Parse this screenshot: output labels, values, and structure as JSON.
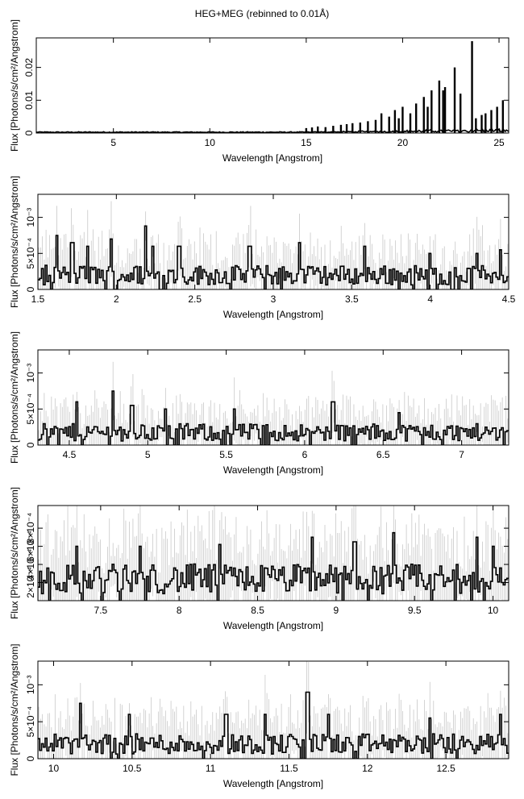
{
  "title": "HEG+MEG (rebinned to 0.01Å)",
  "chart_data": [
    {
      "type": "line",
      "xlabel": "Wavelength [Angstrom]",
      "ylabel": "Flux [Photons/s/cm²/Angstrom]",
      "xlim": [
        1.0,
        25.5
      ],
      "ylim": [
        0,
        0.029
      ],
      "xticks": [
        5,
        10,
        15,
        20,
        25
      ],
      "xtick_labels": [
        "5",
        "10",
        "15",
        "20",
        "25"
      ],
      "yticks": [
        0,
        0.01,
        0.02
      ],
      "ytick_labels": [
        "0",
        "0.01",
        "0.02"
      ],
      "baseline_noise": 0.0004,
      "baseline_x": [
        1.0,
        25.5
      ],
      "spikes": [
        {
          "x": 15.0,
          "y": 0.0015
        },
        {
          "x": 15.3,
          "y": 0.0017
        },
        {
          "x": 15.6,
          "y": 0.002
        },
        {
          "x": 16.0,
          "y": 0.0018
        },
        {
          "x": 16.4,
          "y": 0.0022
        },
        {
          "x": 16.8,
          "y": 0.0025
        },
        {
          "x": 17.1,
          "y": 0.0027
        },
        {
          "x": 17.4,
          "y": 0.003
        },
        {
          "x": 17.8,
          "y": 0.0032
        },
        {
          "x": 18.2,
          "y": 0.0036
        },
        {
          "x": 18.6,
          "y": 0.004
        },
        {
          "x": 18.9,
          "y": 0.006
        },
        {
          "x": 19.3,
          "y": 0.005
        },
        {
          "x": 19.6,
          "y": 0.007
        },
        {
          "x": 19.8,
          "y": 0.0045
        },
        {
          "x": 20.0,
          "y": 0.008
        },
        {
          "x": 20.4,
          "y": 0.006
        },
        {
          "x": 20.7,
          "y": 0.009
        },
        {
          "x": 21.1,
          "y": 0.011
        },
        {
          "x": 21.3,
          "y": 0.008
        },
        {
          "x": 21.5,
          "y": 0.013
        },
        {
          "x": 21.9,
          "y": 0.016
        },
        {
          "x": 22.1,
          "y": 0.013
        },
        {
          "x": 22.2,
          "y": 0.014
        },
        {
          "x": 22.7,
          "y": 0.02
        },
        {
          "x": 23.0,
          "y": 0.012
        },
        {
          "x": 23.6,
          "y": 0.028
        },
        {
          "x": 23.8,
          "y": 0.0045
        },
        {
          "x": 24.1,
          "y": 0.0055
        },
        {
          "x": 24.3,
          "y": 0.006
        },
        {
          "x": 24.6,
          "y": 0.007
        },
        {
          "x": 24.9,
          "y": 0.008
        },
        {
          "x": 25.2,
          "y": 0.01
        }
      ]
    },
    {
      "type": "line",
      "xlabel": "Wavelength [Angstrom]",
      "ylabel": "Flux [Photons/s/cm²/Angstrom]",
      "xlim": [
        1.5,
        4.5
      ],
      "ylim": [
        0,
        0.00132
      ],
      "xticks": [
        1.5,
        2,
        2.5,
        3,
        3.5,
        4,
        4.5
      ],
      "xtick_labels": [
        "1.5",
        "2",
        "2.5",
        "3",
        "3.5",
        "4",
        "4.5"
      ],
      "yticks": [
        0,
        0.0005,
        0.001
      ],
      "ytick_labels": [
        "0",
        "5×10⁻⁴",
        "10⁻³"
      ],
      "noise_level": 0.00025,
      "peaks": [
        {
          "x": 1.62,
          "y": 0.00075
        },
        {
          "x": 1.72,
          "y": 0.00065
        },
        {
          "x": 1.82,
          "y": 0.0006
        },
        {
          "x": 1.97,
          "y": 0.0007
        },
        {
          "x": 2.19,
          "y": 0.00088
        },
        {
          "x": 2.23,
          "y": 0.0006
        },
        {
          "x": 2.4,
          "y": 0.0006
        },
        {
          "x": 2.85,
          "y": 0.0006
        },
        {
          "x": 3.17,
          "y": 0.00065
        },
        {
          "x": 3.58,
          "y": 0.0006
        },
        {
          "x": 4.0,
          "y": 0.0005
        },
        {
          "x": 4.3,
          "y": 0.0005
        },
        {
          "x": 4.45,
          "y": 0.00055
        }
      ]
    },
    {
      "type": "line",
      "xlabel": "Wavelength [Angstrom]",
      "ylabel": "Flux [Photons/s/cm²/Angstrom]",
      "xlim": [
        4.3,
        7.3
      ],
      "ylim": [
        0,
        0.00132
      ],
      "xticks": [
        4.5,
        5,
        5.5,
        6,
        6.5,
        7
      ],
      "xtick_labels": [
        "4.5",
        "5",
        "5.5",
        "6",
        "6.5",
        "7"
      ],
      "yticks": [
        0,
        0.0005,
        0.001
      ],
      "ytick_labels": [
        "0",
        "5×10⁻⁴",
        "10⁻³"
      ],
      "noise_level": 0.00022,
      "peaks": [
        {
          "x": 4.78,
          "y": 0.00075
        },
        {
          "x": 4.55,
          "y": 0.0006
        },
        {
          "x": 4.9,
          "y": 0.00055
        },
        {
          "x": 5.12,
          "y": 0.0005
        },
        {
          "x": 5.47,
          "y": 0.00085
        },
        {
          "x": 5.55,
          "y": 0.0005
        },
        {
          "x": 6.18,
          "y": 0.0006
        },
        {
          "x": 6.6,
          "y": 0.00045
        }
      ]
    },
    {
      "type": "line",
      "xlabel": "Wavelength [Angstrom]",
      "ylabel": "Flux [Photons/s/cm²/Angstrom]",
      "xlim": [
        7.1,
        10.1
      ],
      "ylim": [
        0,
        0.00105
      ],
      "xticks": [
        7.5,
        8,
        8.5,
        9,
        9.5,
        10
      ],
      "xtick_labels": [
        "7.5",
        "8",
        "8.5",
        "9",
        "9.5",
        "10"
      ],
      "yticks": [
        0.0002,
        0.0004,
        0.0006,
        0.0008
      ],
      "ytick_labels": [
        "2×10⁻⁴",
        "4×10⁻⁴",
        "6×10⁻⁴",
        "8×10⁻⁴"
      ],
      "noise_level": 0.0003,
      "peaks": [
        {
          "x": 7.35,
          "y": 0.0006
        },
        {
          "x": 7.75,
          "y": 0.0006
        },
        {
          "x": 8.26,
          "y": 0.00062
        },
        {
          "x": 8.85,
          "y": 0.0007
        },
        {
          "x": 9.12,
          "y": 0.00065
        },
        {
          "x": 9.37,
          "y": 0.00075
        },
        {
          "x": 9.9,
          "y": 0.0007
        },
        {
          "x": 10.0,
          "y": 0.0006
        }
      ]
    },
    {
      "type": "line",
      "xlabel": "Wavelength [Angstrom]",
      "ylabel": "Flux [Photons/s/cm²/Angstrom]",
      "xlim": [
        9.9,
        12.9
      ],
      "ylim": [
        0,
        0.00132
      ],
      "xticks": [
        10,
        10.5,
        11,
        11.5,
        12,
        12.5
      ],
      "xtick_labels": [
        "10",
        "10.5",
        "11",
        "11.5",
        "12",
        "12.5"
      ],
      "yticks": [
        0,
        0.0005,
        0.001
      ],
      "ytick_labels": [
        "0",
        "5×10⁻⁴",
        "10⁻³"
      ],
      "noise_level": 0.00025,
      "peaks": [
        {
          "x": 10.17,
          "y": 0.00075
        },
        {
          "x": 10.48,
          "y": 0.0006
        },
        {
          "x": 11.1,
          "y": 0.0006
        },
        {
          "x": 11.35,
          "y": 0.0006
        },
        {
          "x": 11.62,
          "y": 0.0009
        },
        {
          "x": 11.75,
          "y": 0.0006
        },
        {
          "x": 12.4,
          "y": 0.00055
        },
        {
          "x": 12.85,
          "y": 0.0006
        }
      ]
    }
  ]
}
